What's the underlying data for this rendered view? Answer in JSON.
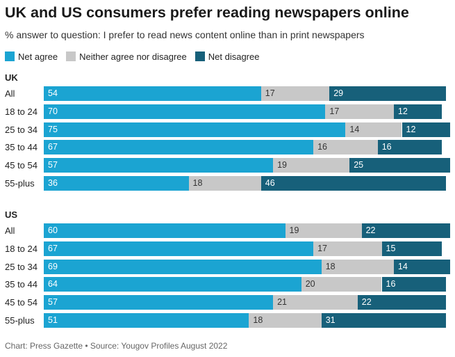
{
  "title": "UK and US consumers prefer reading newspapers online",
  "subtitle": "% answer to question: I prefer to read news content online than in print newspapers",
  "footer": "Chart: Press Gazette • Source: Yougov Profiles August 2022",
  "legend": [
    {
      "label": "Net agree",
      "color": "#1ba4d2"
    },
    {
      "label": "Neither agree nor disagree",
      "color": "#c8c8c8"
    },
    {
      "label": "Net disagree",
      "color": "#17607a"
    }
  ],
  "chart_data": {
    "type": "bar",
    "orientation": "horizontal",
    "stacked": true,
    "title": "UK and US consumers prefer reading newspapers online",
    "subtitle": "% answer to question: I prefer to read news content online than in print newspapers",
    "series_names": [
      "Net agree",
      "Neither agree nor disagree",
      "Net disagree"
    ],
    "groups": [
      {
        "name": "UK",
        "categories": [
          "All",
          "18 to 24",
          "25 to 34",
          "35 to 44",
          "45 to 54",
          "55-plus"
        ],
        "series": [
          {
            "name": "Net agree",
            "values": [
              54,
              70,
              75,
              67,
              57,
              36
            ]
          },
          {
            "name": "Neither agree nor disagree",
            "values": [
              17,
              17,
              14,
              16,
              19,
              18
            ]
          },
          {
            "name": "Net disagree",
            "values": [
              29,
              12,
              12,
              16,
              25,
              46
            ]
          }
        ]
      },
      {
        "name": "US",
        "categories": [
          "All",
          "18 to 24",
          "25 to 34",
          "35 to 44",
          "45 to 54",
          "55-plus"
        ],
        "series": [
          {
            "name": "Net agree",
            "values": [
              60,
              67,
              69,
              64,
              57,
              51
            ]
          },
          {
            "name": "Neither agree nor disagree",
            "values": [
              19,
              17,
              18,
              20,
              21,
              18
            ]
          },
          {
            "name": "Net disagree",
            "values": [
              22,
              15,
              14,
              16,
              22,
              31
            ]
          }
        ]
      }
    ],
    "xlim": [
      0,
      101
    ]
  }
}
